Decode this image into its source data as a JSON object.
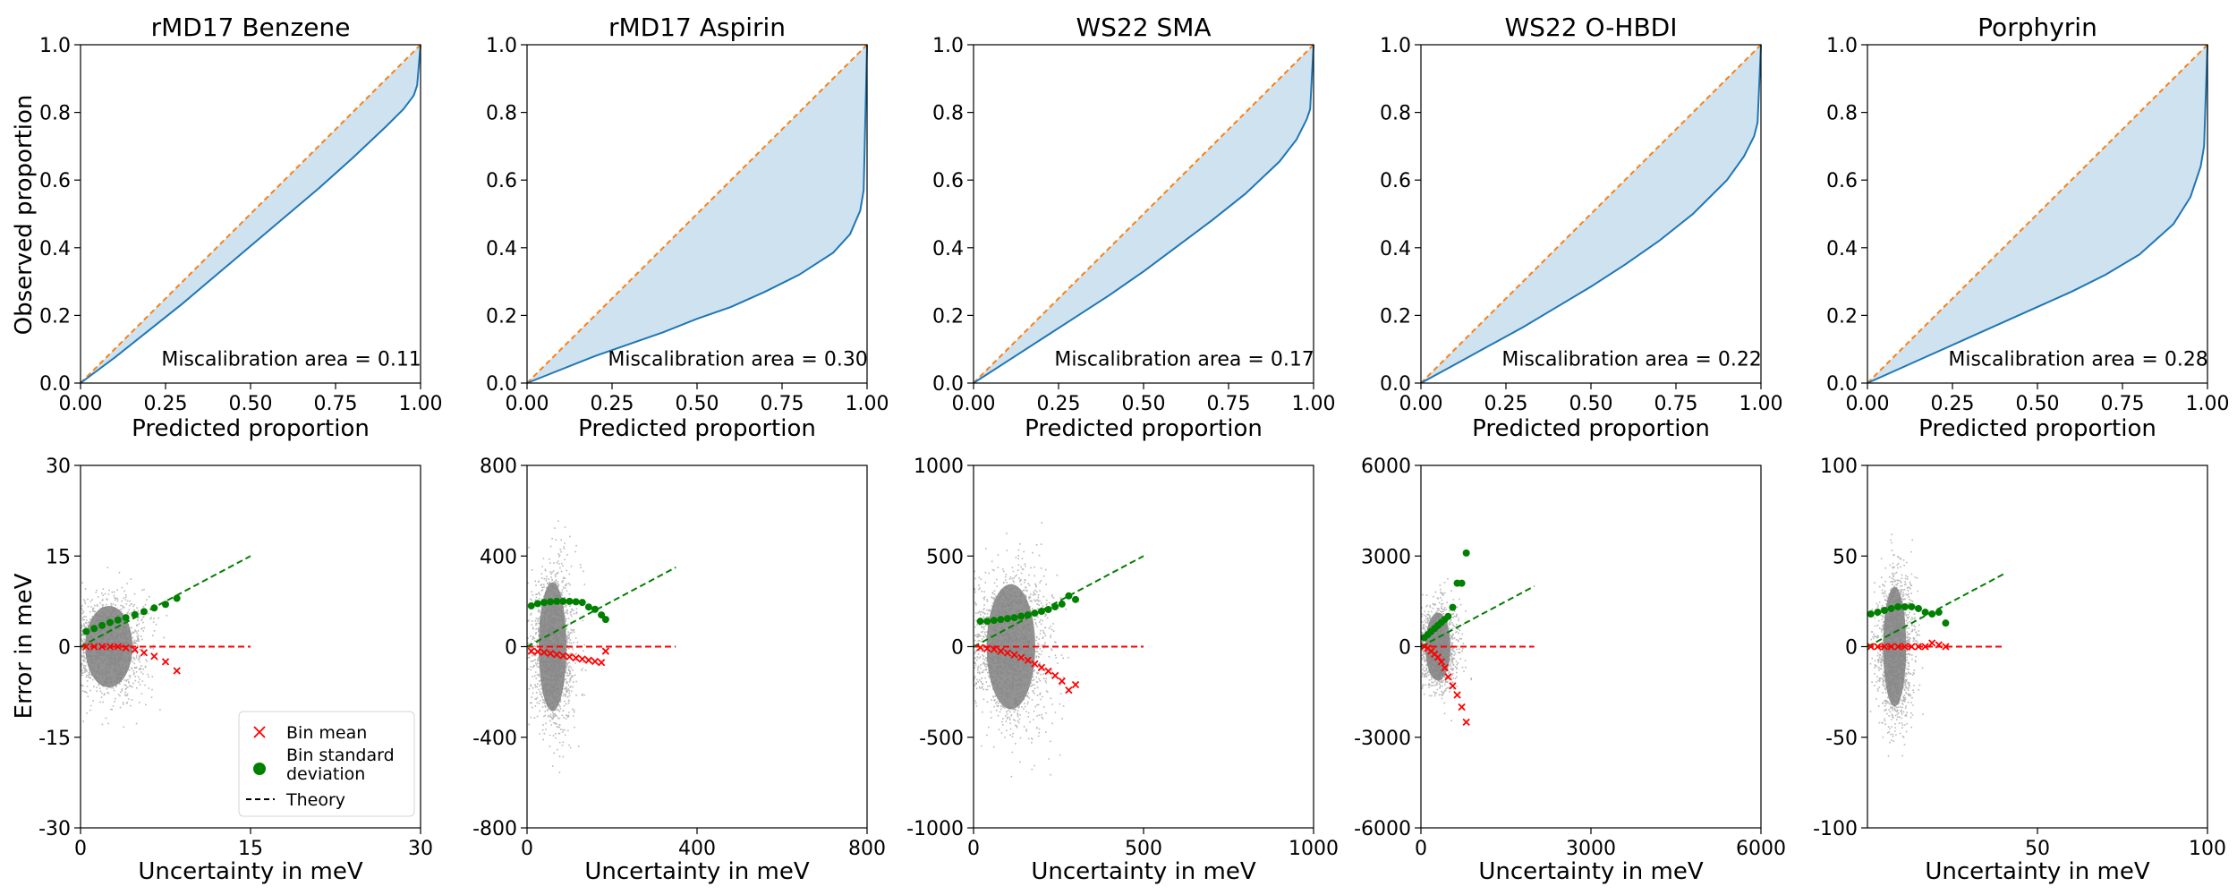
{
  "figure": {
    "row1_ylabel": "Observed proportion",
    "row1_xlabel": "Predicted proportion",
    "row2_ylabel": "Error in meV",
    "row2_xlabel": "Uncertainty in meV"
  },
  "legend": {
    "bin_mean": "Bin mean",
    "bin_std_line1": "Bin standard",
    "bin_std_line2": "deviation",
    "theory": "Theory"
  },
  "colors": {
    "calibration_curve": "#1f77b4",
    "fill": "#cfe2f0",
    "ideal": "#ff7f0e",
    "scatter": "#808080",
    "bin_mean": "#ff0000",
    "bin_std": "#008000",
    "theory_std": "#008000",
    "theory_mean": "#ff0000"
  },
  "chart_data": [
    {
      "type": "line",
      "title": "rMD17 Benzene",
      "annotation": "Miscalibration area = 0.11",
      "xlabel": "Predicted proportion",
      "ylabel": "Observed proportion",
      "xlim": [
        0,
        1
      ],
      "ylim": [
        0,
        1
      ],
      "xticks": [
        "0.00",
        "0.25",
        "0.50",
        "0.75",
        "1.00"
      ],
      "yticks": [
        "0.0",
        "0.2",
        "0.4",
        "0.6",
        "0.8",
        "1.0"
      ],
      "x": [
        0,
        0.1,
        0.2,
        0.3,
        0.4,
        0.5,
        0.6,
        0.7,
        0.8,
        0.9,
        0.95,
        0.98,
        0.99,
        1.0
      ],
      "y": [
        0,
        0.075,
        0.155,
        0.235,
        0.32,
        0.405,
        0.49,
        0.575,
        0.665,
        0.76,
        0.81,
        0.85,
        0.88,
        1.0
      ],
      "ideal": [
        [
          0,
          0
        ],
        [
          1,
          1
        ]
      ]
    },
    {
      "type": "line",
      "title": "rMD17 Aspirin",
      "annotation": "Miscalibration area = 0.30",
      "xlabel": "Predicted proportion",
      "ylabel": "",
      "xlim": [
        0,
        1
      ],
      "ylim": [
        0,
        1
      ],
      "xticks": [
        "0.00",
        "0.25",
        "0.50",
        "0.75",
        "1.00"
      ],
      "yticks": [
        "0.0",
        "0.2",
        "0.4",
        "0.6",
        "0.8",
        "1.0"
      ],
      "x": [
        0,
        0.1,
        0.2,
        0.3,
        0.4,
        0.5,
        0.6,
        0.7,
        0.8,
        0.9,
        0.95,
        0.98,
        0.99,
        1.0
      ],
      "y": [
        0,
        0.04,
        0.08,
        0.115,
        0.15,
        0.19,
        0.225,
        0.27,
        0.32,
        0.385,
        0.44,
        0.51,
        0.57,
        1.0
      ],
      "ideal": [
        [
          0,
          0
        ],
        [
          1,
          1
        ]
      ]
    },
    {
      "type": "line",
      "title": "WS22 SMA",
      "annotation": "Miscalibration area = 0.17",
      "xlabel": "Predicted proportion",
      "ylabel": "",
      "xlim": [
        0,
        1
      ],
      "ylim": [
        0,
        1
      ],
      "xticks": [
        "0.00",
        "0.25",
        "0.50",
        "0.75",
        "1.00"
      ],
      "yticks": [
        "0.0",
        "0.2",
        "0.4",
        "0.6",
        "0.8",
        "1.0"
      ],
      "x": [
        0,
        0.1,
        0.2,
        0.3,
        0.4,
        0.5,
        0.6,
        0.7,
        0.8,
        0.9,
        0.95,
        0.98,
        0.99,
        1.0
      ],
      "y": [
        0,
        0.065,
        0.13,
        0.195,
        0.26,
        0.33,
        0.405,
        0.48,
        0.56,
        0.655,
        0.72,
        0.78,
        0.81,
        1.0
      ],
      "ideal": [
        [
          0,
          0
        ],
        [
          1,
          1
        ]
      ]
    },
    {
      "type": "line",
      "title": "WS22 O-HBDI",
      "annotation": "Miscalibration area = 0.22",
      "xlabel": "Predicted proportion",
      "ylabel": "",
      "xlim": [
        0,
        1
      ],
      "ylim": [
        0,
        1
      ],
      "xticks": [
        "0.00",
        "0.25",
        "0.50",
        "0.75",
        "1.00"
      ],
      "yticks": [
        "0.0",
        "0.2",
        "0.4",
        "0.6",
        "0.8",
        "1.0"
      ],
      "x": [
        0,
        0.1,
        0.2,
        0.3,
        0.4,
        0.5,
        0.6,
        0.7,
        0.8,
        0.9,
        0.95,
        0.98,
        0.99,
        1.0
      ],
      "y": [
        0,
        0.055,
        0.11,
        0.165,
        0.225,
        0.285,
        0.35,
        0.42,
        0.5,
        0.6,
        0.67,
        0.73,
        0.77,
        1.0
      ],
      "ideal": [
        [
          0,
          0
        ],
        [
          1,
          1
        ]
      ]
    },
    {
      "type": "line",
      "title": "Porphyrin",
      "annotation": "Miscalibration area = 0.28",
      "xlabel": "Predicted proportion",
      "ylabel": "",
      "xlim": [
        0,
        1
      ],
      "ylim": [
        0,
        1
      ],
      "xticks": [
        "0.00",
        "0.25",
        "0.50",
        "0.75",
        "1.00"
      ],
      "yticks": [
        "0.0",
        "0.2",
        "0.4",
        "0.6",
        "0.8",
        "1.0"
      ],
      "x": [
        0,
        0.1,
        0.2,
        0.3,
        0.4,
        0.5,
        0.6,
        0.7,
        0.8,
        0.9,
        0.95,
        0.98,
        0.99,
        1.0
      ],
      "y": [
        0,
        0.045,
        0.09,
        0.135,
        0.18,
        0.225,
        0.27,
        0.32,
        0.38,
        0.47,
        0.55,
        0.64,
        0.7,
        1.0
      ],
      "ideal": [
        [
          0,
          0
        ],
        [
          1,
          1
        ]
      ]
    },
    {
      "type": "scatter",
      "xlabel": "Uncertainty in meV",
      "ylabel": "Error in meV",
      "xlim": [
        0,
        30
      ],
      "ylim": [
        -30,
        30
      ],
      "xticks": [
        "0",
        "15",
        "30"
      ],
      "yticks": [
        "-30",
        "-15",
        "0",
        "15",
        "30"
      ],
      "scatter_cloud": {
        "center_x": 2.5,
        "spread_x": 1.6,
        "spread_y": 4.5,
        "max_x": 9,
        "count": 1400
      },
      "bin_mean": {
        "x": [
          0.5,
          1.2,
          1.9,
          2.6,
          3.3,
          4.0,
          4.8,
          5.6,
          6.5,
          7.5,
          8.5
        ],
        "y": [
          0,
          0,
          0,
          0,
          0,
          -0.2,
          -0.5,
          -1.0,
          -1.6,
          -2.5,
          -4.0
        ]
      },
      "bin_std": {
        "x": [
          0.5,
          1.2,
          1.9,
          2.6,
          3.3,
          4.0,
          4.8,
          5.6,
          6.5,
          7.5,
          8.5
        ],
        "y": [
          2.5,
          3.0,
          3.5,
          4.0,
          4.4,
          4.8,
          5.3,
          5.8,
          6.4,
          7.0,
          8.0
        ]
      },
      "theory_std": [
        [
          0,
          0
        ],
        [
          15,
          15
        ]
      ],
      "theory_mean": [
        [
          0,
          0
        ],
        [
          15,
          0
        ]
      ],
      "legend": true
    },
    {
      "type": "scatter",
      "xlabel": "Uncertainty in meV",
      "ylabel": "",
      "xlim": [
        0,
        800
      ],
      "ylim": [
        -800,
        800
      ],
      "xticks": [
        "0",
        "400",
        "800"
      ],
      "yticks": [
        "-800",
        "-400",
        "0",
        "400",
        "800"
      ],
      "scatter_cloud": {
        "center_x": 60,
        "spread_x": 25,
        "spread_y": 190,
        "max_x": 190,
        "count": 1600
      },
      "bin_mean": {
        "x": [
          10,
          25,
          40,
          55,
          70,
          85,
          100,
          115,
          130,
          145,
          160,
          175,
          185
        ],
        "y": [
          -20,
          -22,
          -25,
          -30,
          -35,
          -40,
          -45,
          -50,
          -55,
          -60,
          -65,
          -70,
          -20
        ]
      },
      "bin_std": {
        "x": [
          10,
          25,
          40,
          55,
          70,
          85,
          100,
          115,
          130,
          145,
          160,
          175,
          185
        ],
        "y": [
          180,
          190,
          195,
          198,
          200,
          200,
          200,
          198,
          195,
          175,
          165,
          140,
          120
        ]
      },
      "theory_std": [
        [
          0,
          0
        ],
        [
          350,
          350
        ]
      ],
      "theory_mean": [
        [
          0,
          0
        ],
        [
          350,
          0
        ]
      ],
      "legend": false
    },
    {
      "type": "scatter",
      "xlabel": "Uncertainty in meV",
      "ylabel": "",
      "xlim": [
        0,
        1000
      ],
      "ylim": [
        -1000,
        1000
      ],
      "xticks": [
        "0",
        "500",
        "1000"
      ],
      "yticks": [
        "-1000",
        "-500",
        "0",
        "500",
        "1000"
      ],
      "scatter_cloud": {
        "center_x": 110,
        "spread_x": 55,
        "spread_y": 230,
        "max_x": 330,
        "count": 1600
      },
      "bin_mean": {
        "x": [
          20,
          40,
          60,
          80,
          100,
          120,
          140,
          160,
          180,
          200,
          220,
          240,
          260,
          280,
          300
        ],
        "y": [
          -5,
          -10,
          -15,
          -25,
          -35,
          -45,
          -60,
          -75,
          -95,
          -115,
          -135,
          -160,
          -190,
          -240,
          -210
        ]
      },
      "bin_std": {
        "x": [
          20,
          40,
          60,
          80,
          100,
          120,
          140,
          160,
          180,
          200,
          220,
          240,
          260,
          280,
          300
        ],
        "y": [
          140,
          140,
          145,
          150,
          155,
          160,
          168,
          175,
          185,
          195,
          205,
          220,
          235,
          280,
          260
        ]
      },
      "theory_std": [
        [
          0,
          0
        ],
        [
          500,
          500
        ]
      ],
      "theory_mean": [
        [
          0,
          0
        ],
        [
          500,
          0
        ]
      ],
      "legend": false
    },
    {
      "type": "scatter",
      "xlabel": "Uncertainty in meV",
      "ylabel": "",
      "xlim": [
        0,
        6000
      ],
      "ylim": [
        -6000,
        6000
      ],
      "xticks": [
        "0",
        "3000",
        "6000"
      ],
      "yticks": [
        "-6000",
        "-3000",
        "0",
        "3000",
        "6000"
      ],
      "scatter_cloud": {
        "center_x": 300,
        "spread_x": 170,
        "spread_y": 750,
        "max_x": 950,
        "count": 1300
      },
      "bin_mean": {
        "x": [
          60,
          120,
          180,
          240,
          300,
          360,
          420,
          480,
          560,
          640,
          720,
          800
        ],
        "y": [
          0,
          -50,
          -150,
          -250,
          -350,
          -500,
          -700,
          -1000,
          -1300,
          -1600,
          -2000,
          -2500
        ]
      },
      "bin_std": {
        "x": [
          60,
          120,
          180,
          240,
          300,
          360,
          420,
          480,
          560,
          640,
          720,
          800
        ],
        "y": [
          300,
          400,
          500,
          600,
          700,
          800,
          900,
          1000,
          1300,
          2100,
          2100,
          3100
        ]
      },
      "theory_std": [
        [
          0,
          0
        ],
        [
          2000,
          2000
        ]
      ],
      "theory_mean": [
        [
          0,
          0
        ],
        [
          2000,
          0
        ]
      ],
      "legend": false
    },
    {
      "type": "scatter",
      "xlabel": "Uncertainty in meV",
      "ylabel": "",
      "xlim": [
        0,
        100
      ],
      "ylim": [
        -100,
        100
      ],
      "xticks": [
        "50",
        "100"
      ],
      "yticks": [
        "-100",
        "-50",
        "0",
        "50",
        "100"
      ],
      "scatter_cloud": {
        "center_x": 8,
        "spread_x": 2.6,
        "spread_y": 22,
        "max_x": 22,
        "count": 1600
      },
      "bin_mean": {
        "x": [
          1,
          3,
          5,
          7,
          9,
          11,
          13,
          15,
          17,
          19,
          21,
          23
        ],
        "y": [
          0,
          0,
          0,
          0,
          0,
          0,
          0,
          0,
          0,
          2,
          1,
          0
        ]
      },
      "bin_std": {
        "x": [
          1,
          3,
          5,
          7,
          9,
          11,
          13,
          15,
          17,
          19,
          21,
          23
        ],
        "y": [
          18,
          19,
          20,
          21,
          22,
          22,
          22,
          21,
          19,
          18,
          19,
          13
        ]
      },
      "theory_std": [
        [
          0,
          0
        ],
        [
          40,
          40
        ]
      ],
      "theory_mean": [
        [
          0,
          0
        ],
        [
          40,
          0
        ]
      ],
      "legend": false
    }
  ]
}
